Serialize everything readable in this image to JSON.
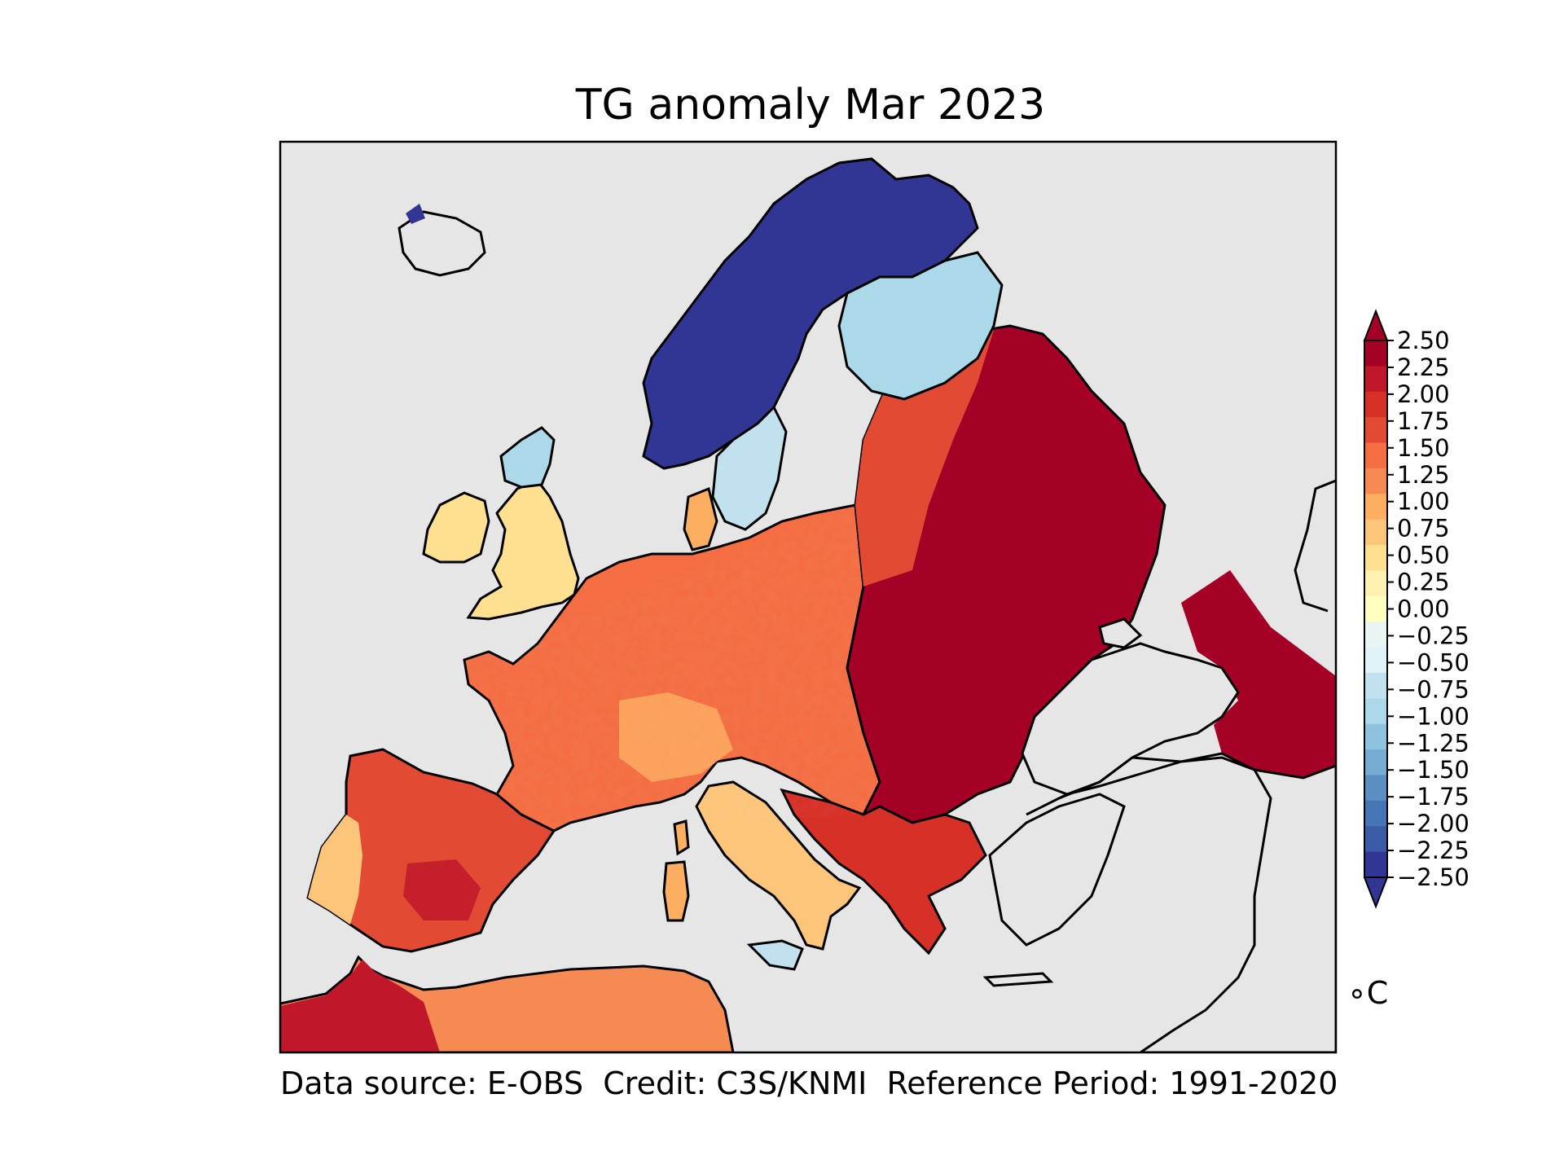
{
  "title": "TG anomaly Mar 2023",
  "footer": "Data source: E-OBS  Credit: C3S/KNMI  Reference Period: 1991-2020",
  "colorbar": {
    "unit": "∘C",
    "ticks": [
      "2.50",
      "2.25",
      "2.00",
      "1.75",
      "1.50",
      "1.25",
      "1.00",
      "0.75",
      "0.50",
      "0.25",
      "0.00",
      "−0.25",
      "−0.50",
      "−0.75",
      "−1.00",
      "−1.25",
      "−1.50",
      "−1.75",
      "−2.00",
      "−2.25",
      "−2.50"
    ],
    "colors": [
      "#a50026",
      "#c1172b",
      "#d73027",
      "#e34a33",
      "#f46d43",
      "#f68a53",
      "#fdae61",
      "#fdc57a",
      "#fee090",
      "#fff1b0",
      "#ffffbf",
      "#e8f5f3",
      "#e0f3f8",
      "#c2e1ee",
      "#abd9e9",
      "#8fc3dd",
      "#74add1",
      "#5b8fc3",
      "#4575b4",
      "#3b5ba6",
      "#313695"
    ],
    "over_color": "#a50026",
    "under_color": "#313695"
  },
  "map": {
    "sea_color": "#e6e6e6",
    "coastline_color": "#000000",
    "regions": [
      {
        "name": "Scandinavia",
        "color": "#313695"
      },
      {
        "name": "Finland",
        "color": "#abd9e9"
      },
      {
        "name": "Scotland",
        "color": "#abd9e9"
      },
      {
        "name": "British Isles",
        "color": "#fee090"
      },
      {
        "name": "Western Europe",
        "color": "#f46d43"
      },
      {
        "name": "Iberia",
        "color": "#e34a33"
      },
      {
        "name": "Italy",
        "color": "#fdc57a"
      },
      {
        "name": "Eastern Europe",
        "color": "#a50026"
      },
      {
        "name": "North Africa",
        "color": "#f68a53"
      }
    ]
  }
}
